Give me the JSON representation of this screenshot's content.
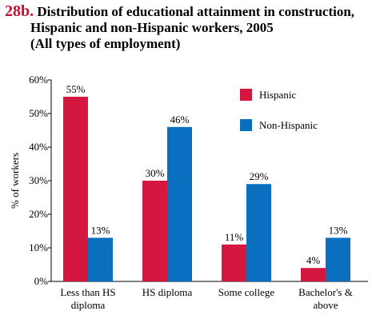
{
  "figure": {
    "number": "28b.",
    "title_line1": "Distribution of educational attainment in construction,",
    "title_line2": "Hispanic and non-Hispanic workers, 2005",
    "title_line3": "(All types of employment)"
  },
  "chart_data": {
    "type": "bar",
    "title": "Distribution of educational attainment in construction, Hispanic and non-Hispanic workers, 2005 (All types of employment)",
    "ylabel": "% of workers",
    "xlabel": "",
    "ylim": [
      0,
      60
    ],
    "y_ticks": [
      "0%",
      "10%",
      "20%",
      "30%",
      "40%",
      "50%",
      "60%"
    ],
    "categories": [
      [
        "Less than HS",
        "diploma"
      ],
      [
        "HS diploma"
      ],
      [
        "Some college"
      ],
      [
        "Bachelor's &",
        "above"
      ]
    ],
    "series": [
      {
        "name": "Hispanic",
        "color": "#d4173f",
        "values": [
          55,
          30,
          11,
          4
        ],
        "labels": [
          "55%",
          "30%",
          "11%",
          "4%"
        ]
      },
      {
        "name": "Non-Hispanic",
        "color": "#0b6fc0",
        "values": [
          13,
          46,
          29,
          13
        ],
        "labels": [
          "13%",
          "46%",
          "29%",
          "13%"
        ]
      }
    ],
    "grid": false,
    "legend_position": "top-right"
  }
}
